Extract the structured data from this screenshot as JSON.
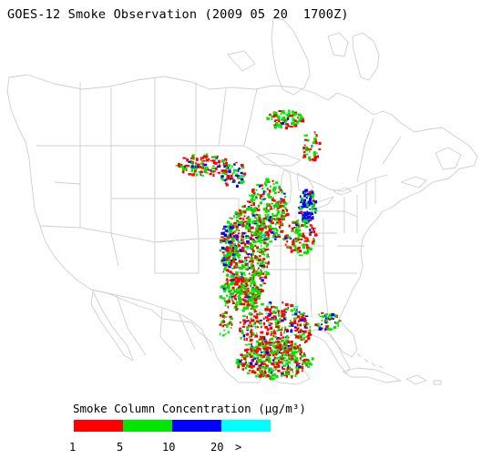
{
  "title": "GOES-12 Smoke Observation (2009 05 20  1700Z)",
  "legend": {
    "title": "Smoke Column Concentration (μg/m³)",
    "bins": [
      {
        "color": "#ff0000"
      },
      {
        "color": "#00e600"
      },
      {
        "color": "#0000ff"
      },
      {
        "color": "#00ffff"
      }
    ],
    "ticks": [
      "1",
      "5",
      "10",
      "20",
      ">"
    ]
  },
  "map": {
    "region": "North America (continental US, southern Canada, northern Mexico, Caribbean)",
    "boundary_color": "#cfcfcf"
  },
  "smoke_colors": {
    "low": "#ff0000",
    "moderate": "#00e600",
    "high": "#0000ff",
    "very_high": "#00ffff"
  }
}
